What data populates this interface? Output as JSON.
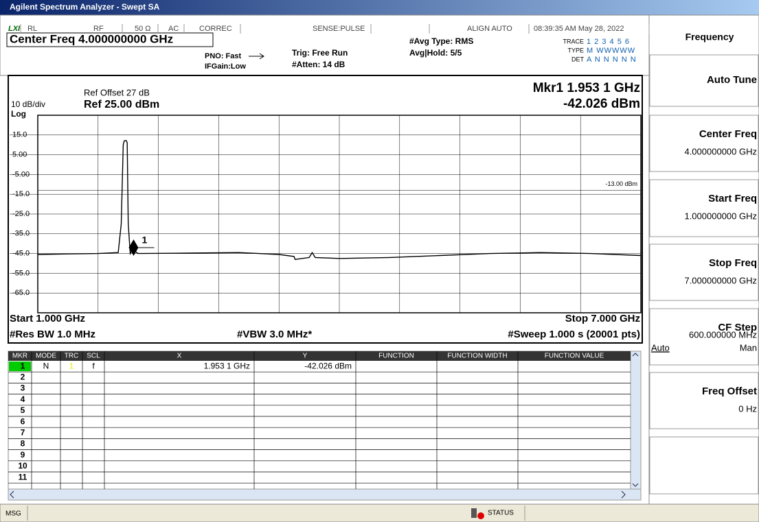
{
  "app": {
    "title": "Agilent Spectrum Analyzer - Swept SA"
  },
  "header": {
    "lxi": "LXI",
    "rl": "RL",
    "rf": "RF",
    "impedance": "50 Ω",
    "coupling": "AC",
    "correc": "CORREC",
    "sense": "SENSE:PULSE",
    "align": "ALIGN AUTO",
    "datetime": "08:39:35 AM May 28, 2022",
    "center_freq": "Center Freq 4.000000000 GHz",
    "pno": "PNO: Fast",
    "ifgain": "IFGain:Low",
    "trig": "Trig: Free Run",
    "atten": "#Atten: 14 dB",
    "avg_type": "#Avg Type: RMS",
    "avg_hold": "Avg|Hold: 5/5",
    "trace_label": "TRACE",
    "trace_value": "1 2 3 4 5 6",
    "type_label": "TYPE",
    "type_value": "M WWWWW",
    "det_label": "DET",
    "det_value": "A N N N N N"
  },
  "display": {
    "ref_offset": "Ref Offset 27 dB",
    "scale": "10 dB/div",
    "ref_level": "Ref 25.00 dBm",
    "log": "Log",
    "marker_readout": "Mkr1 1.953 1 GHz",
    "marker_value": "-42.026 dBm",
    "start": "Start 1.000 GHz",
    "stop": "Stop 7.000 GHz",
    "rbw": "#Res BW 1.0 MHz",
    "vbw": "#VBW 3.0 MHz*",
    "sweep": "#Sweep  1.000 s (20001 pts)",
    "xlim": [
      1,
      7
    ],
    "ylim": [
      -75,
      25
    ],
    "yticks": [
      {
        "value": 15,
        "label": "15.0"
      },
      {
        "value": 5,
        "label": "5.00"
      },
      {
        "value": -5,
        "label": "-5.00"
      },
      {
        "value": -15,
        "label": "-15.0"
      },
      {
        "value": -25,
        "label": "-25.0"
      },
      {
        "value": -35,
        "label": "-35.0"
      },
      {
        "value": -45,
        "label": "-45.0"
      },
      {
        "value": -55,
        "label": "-55.0"
      },
      {
        "value": -65,
        "label": "-65.0"
      }
    ],
    "limit_line": {
      "value": -13,
      "label": "-13.00 dBm"
    },
    "marker": {
      "label": "1",
      "x": 1.9531,
      "y": -42.026
    },
    "trace": {
      "color": "#000000",
      "x": [
        1.0,
        1.3,
        1.6,
        1.8,
        1.83,
        1.85,
        1.86,
        1.88,
        1.89,
        1.9,
        1.92,
        1.94,
        1.953,
        1.97,
        2.0,
        2.5,
        3.0,
        3.4,
        3.55,
        3.56,
        3.7,
        3.73,
        3.76,
        4.0,
        4.5,
        5.0,
        5.5,
        6.0,
        6.5,
        7.0
      ],
      "values": [
        -45.5,
        -45.2,
        -45,
        -44.5,
        -30,
        10,
        12,
        12.2,
        11,
        -30,
        -45,
        -43,
        -42.026,
        -44,
        -45,
        -44.8,
        -44.5,
        -45.5,
        -46.5,
        -48,
        -47,
        -44.5,
        -47,
        -47.5,
        -47,
        -46,
        -45,
        -44.5,
        -45,
        -46
      ]
    }
  },
  "marker_table": {
    "headers": [
      "MKR",
      "MODE",
      "TRC",
      "SCL",
      "X",
      "Y",
      "FUNCTION",
      "FUNCTION WIDTH",
      "FUNCTION VALUE"
    ],
    "rows": [
      {
        "mkr": "1",
        "mode": "N",
        "trc": "1",
        "scl": "f",
        "x": "1.953 1 GHz",
        "y": "-42.026 dBm"
      },
      {
        "mkr": "2"
      },
      {
        "mkr": "3"
      },
      {
        "mkr": "4"
      },
      {
        "mkr": "5"
      },
      {
        "mkr": "6"
      },
      {
        "mkr": "7"
      },
      {
        "mkr": "8"
      },
      {
        "mkr": "9"
      },
      {
        "mkr": "10"
      },
      {
        "mkr": "11"
      }
    ]
  },
  "softkeys": {
    "title": "Frequency",
    "keys": [
      {
        "label": "Auto Tune"
      },
      {
        "label": "Center Freq",
        "value": "4.000000000 GHz"
      },
      {
        "label": "Start Freq",
        "value": "1.000000000 GHz"
      },
      {
        "label": "Stop Freq",
        "value": "7.000000000 GHz"
      },
      {
        "label": "CF Step",
        "value": "600.000000 MHz",
        "option_a": "Auto",
        "option_b": "Man"
      },
      {
        "label": "Freq Offset",
        "value": "0 Hz"
      }
    ]
  },
  "status": {
    "msg": "MSG",
    "status": "STATUS"
  }
}
